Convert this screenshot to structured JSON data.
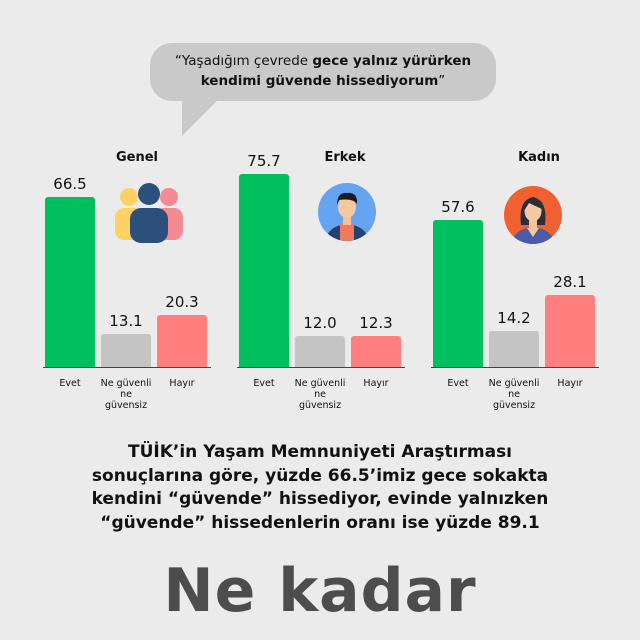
{
  "quote": {
    "open": "“Yaşadığım çevrede ",
    "bold1": "gece yalnız yürürken",
    "bold2": "kendimi güvende hissediyorum",
    "close": "”"
  },
  "colors": {
    "evet": "#00bf5f",
    "neutral": "#c4c4c4",
    "hayir": "#ff7f7f",
    "background": "#ebebeb"
  },
  "chart_data": [
    {
      "type": "bar",
      "title": "Genel",
      "icon": "group-people-icon",
      "categories": [
        "Evet",
        "Ne güvenli ne güvensiz",
        "Hayır"
      ],
      "values": [
        66.5,
        13.1,
        20.3
      ]
    },
    {
      "type": "bar",
      "title": "Erkek",
      "icon": "man-avatar-icon",
      "categories": [
        "Evet",
        "Ne güvenli ne güvensiz",
        "Hayır"
      ],
      "values": [
        75.7,
        12.0,
        12.3
      ]
    },
    {
      "type": "bar",
      "title": "Kadın",
      "icon": "woman-avatar-icon",
      "categories": [
        "Evet",
        "Ne güvenli ne güvensiz",
        "Hayır"
      ],
      "values": [
        57.6,
        14.2,
        28.1
      ]
    }
  ],
  "summary": {
    "line1": "TÜİK’in Yaşam Memnuniyeti Araştırması",
    "line2": "sonuçlarına göre, yüzde 66.5’imiz gece sokakta",
    "line3": "kendini “güvende” hissediyor, evinde yalnızken",
    "line4": "“güvende” hissedenlerin oranı ise yüzde 89.1"
  },
  "brand": "Ne kadar"
}
